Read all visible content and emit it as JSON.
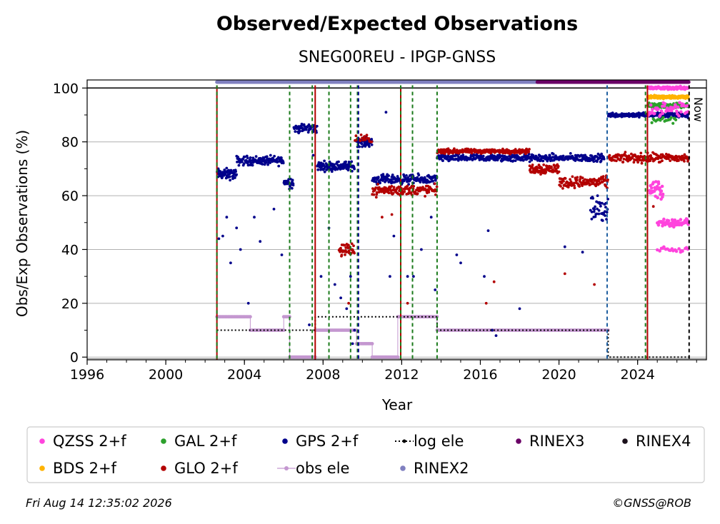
{
  "chart_data": {
    "type": "scatter",
    "title": "Observed/Expected Observations",
    "subtitle": "SNEG00REU - IPGP-GNSS",
    "xlabel": "Year",
    "ylabel": "Obs/Exp Observations (%)",
    "xlim": [
      1996,
      2027.5
    ],
    "ylim": [
      -1,
      103
    ],
    "xticks": [
      "1996",
      "2000",
      "2004",
      "2008",
      "2012",
      "2016",
      "2020",
      "2024"
    ],
    "yticks": [
      "0",
      "20",
      "40",
      "60",
      "80",
      "100"
    ],
    "grid": "horizontal",
    "now_label": "Now",
    "now_year": 2026.62,
    "series": [
      {
        "name": "QZSS 2+f",
        "color": "#ff44dd",
        "segments": [
          {
            "x0": 2024.5,
            "x1": 2026.6,
            "y": 100,
            "noise": 0.8,
            "n": 80
          },
          {
            "x0": 2024.5,
            "x1": 2026.6,
            "y": 92,
            "noise": 4,
            "n": 50
          },
          {
            "x0": 2024.6,
            "x1": 2025.3,
            "y": 62,
            "noise": 6,
            "n": 30
          },
          {
            "x0": 2025.0,
            "x1": 2026.6,
            "y": 50,
            "noise": 2,
            "n": 60
          },
          {
            "x0": 2025.0,
            "x1": 2026.6,
            "y": 40,
            "noise": 1.5,
            "n": 20
          }
        ]
      },
      {
        "name": "BDS 2+f",
        "color": "#ffb300",
        "segments": [
          {
            "x0": 2024.5,
            "x1": 2026.6,
            "y": 96.5,
            "noise": 0.7,
            "n": 80
          },
          {
            "x0": 2024.5,
            "x1": 2026.6,
            "y": 97,
            "noise": 0.5,
            "n": 40
          }
        ]
      },
      {
        "name": "GAL 2+f",
        "color": "#2ca02c",
        "segments": [
          {
            "x0": 2024.5,
            "x1": 2026.6,
            "y": 93.5,
            "noise": 1.2,
            "n": 120
          },
          {
            "x0": 2024.7,
            "x1": 2026.0,
            "y": 88,
            "noise": 2,
            "n": 20
          }
        ]
      },
      {
        "name": "GPS 2+f",
        "color": "#00008b",
        "segments": [
          {
            "x0": 2002.6,
            "x1": 2003.6,
            "y": 68,
            "noise": 3,
            "n": 60
          },
          {
            "x0": 2003.6,
            "x1": 2006.0,
            "y": 73,
            "noise": 2.5,
            "n": 120
          },
          {
            "x0": 2006.0,
            "x1": 2006.5,
            "y": 65,
            "noise": 3,
            "n": 25
          },
          {
            "x0": 2006.5,
            "x1": 2007.7,
            "y": 85,
            "noise": 2.5,
            "n": 60
          },
          {
            "x0": 2007.7,
            "x1": 2009.6,
            "y": 71,
            "noise": 2.5,
            "n": 110
          },
          {
            "x0": 2009.7,
            "x1": 2010.5,
            "y": 80,
            "noise": 2.5,
            "n": 50
          },
          {
            "x0": 2010.5,
            "x1": 2013.8,
            "y": 66,
            "noise": 2.5,
            "n": 170
          },
          {
            "x0": 2013.8,
            "x1": 2022.3,
            "y": 74,
            "noise": 2,
            "n": 400
          },
          {
            "x0": 2021.6,
            "x1": 2022.5,
            "y": 55,
            "noise": 7,
            "n": 40
          },
          {
            "x0": 2022.5,
            "x1": 2024.5,
            "y": 90,
            "noise": 1.2,
            "n": 120
          },
          {
            "x0": 2024.5,
            "x1": 2026.6,
            "y": 90,
            "noise": 1.5,
            "n": 110
          }
        ],
        "outliers": [
          [
            2002.7,
            44
          ],
          [
            2002.9,
            45
          ],
          [
            2003.1,
            52
          ],
          [
            2003.3,
            35
          ],
          [
            2003.6,
            48
          ],
          [
            2003.8,
            40
          ],
          [
            2004.2,
            20
          ],
          [
            2004.5,
            52
          ],
          [
            2004.8,
            43
          ],
          [
            2005.5,
            55
          ],
          [
            2005.9,
            38
          ],
          [
            2007.3,
            12
          ],
          [
            2007.5,
            75
          ],
          [
            2007.9,
            30
          ],
          [
            2008.3,
            48
          ],
          [
            2008.6,
            27
          ],
          [
            2008.9,
            22
          ],
          [
            2009.2,
            18
          ],
          [
            2009.4,
            30
          ],
          [
            2009.6,
            10
          ],
          [
            2009.5,
            5
          ],
          [
            2011.2,
            91
          ],
          [
            2011.4,
            30
          ],
          [
            2011.6,
            45
          ],
          [
            2012.3,
            30
          ],
          [
            2012.6,
            30
          ],
          [
            2013.0,
            40
          ],
          [
            2013.5,
            52
          ],
          [
            2013.7,
            25
          ],
          [
            2014.8,
            38
          ],
          [
            2015.0,
            35
          ],
          [
            2016.2,
            30
          ],
          [
            2016.4,
            47
          ],
          [
            2016.6,
            10
          ],
          [
            2016.8,
            8
          ],
          [
            2018.0,
            18
          ],
          [
            2020.3,
            41
          ],
          [
            2021.2,
            39
          ]
        ]
      },
      {
        "name": "GLO 2+f",
        "color": "#b30000",
        "segments": [
          {
            "x0": 2008.8,
            "x1": 2009.6,
            "y": 40,
            "noise": 4,
            "n": 40
          },
          {
            "x0": 2009.6,
            "x1": 2010.5,
            "y": 81,
            "noise": 2,
            "n": 20
          },
          {
            "x0": 2010.5,
            "x1": 2013.8,
            "y": 62,
            "noise": 3,
            "n": 140
          },
          {
            "x0": 2013.8,
            "x1": 2018.5,
            "y": 76.5,
            "noise": 1.2,
            "n": 220
          },
          {
            "x0": 2018.5,
            "x1": 2020.0,
            "y": 70,
            "noise": 3,
            "n": 80
          },
          {
            "x0": 2020.0,
            "x1": 2022.5,
            "y": 65,
            "noise": 3,
            "n": 110
          },
          {
            "x0": 2022.5,
            "x1": 2026.6,
            "y": 74,
            "noise": 2.5,
            "n": 180
          }
        ],
        "outliers": [
          [
            2009.3,
            20
          ],
          [
            2011.0,
            52
          ],
          [
            2011.5,
            53
          ],
          [
            2012.3,
            20
          ],
          [
            2016.3,
            20
          ],
          [
            2016.7,
            28
          ],
          [
            2020.3,
            31
          ],
          [
            2021.8,
            27
          ],
          [
            2024.8,
            56
          ]
        ]
      },
      {
        "name": "log ele",
        "color": "#000000",
        "style": "dotted",
        "steps": [
          [
            2002.6,
            10
          ],
          [
            2007.6,
            10
          ],
          [
            2007.6,
            15
          ],
          [
            2013.8,
            15
          ],
          [
            2013.8,
            10
          ],
          [
            2022.5,
            10
          ],
          [
            2022.5,
            0
          ],
          [
            2026.6,
            0
          ]
        ]
      },
      {
        "name": "obs ele",
        "color": "#c497d0",
        "style": "line",
        "steps": [
          [
            2002.6,
            15
          ],
          [
            2004.3,
            15
          ],
          [
            2004.3,
            10
          ],
          [
            2006.0,
            10
          ],
          [
            2006.0,
            15
          ],
          [
            2006.3,
            15
          ],
          [
            2006.3,
            0
          ],
          [
            2007.6,
            0
          ],
          [
            2007.6,
            10
          ],
          [
            2009.7,
            10
          ],
          [
            2009.7,
            5
          ],
          [
            2010.5,
            5
          ],
          [
            2010.5,
            0
          ],
          [
            2011.8,
            0
          ],
          [
            2011.8,
            15
          ],
          [
            2013.8,
            15
          ],
          [
            2013.8,
            10
          ],
          [
            2022.5,
            10
          ]
        ]
      },
      {
        "name": "RINEX2",
        "color": "#8080c0",
        "band": [
          2002.6,
          2018.9
        ],
        "y": 102.2
      },
      {
        "name": "RINEX3",
        "color": "#6a0066",
        "band": [
          2018.9,
          2026.6
        ],
        "y": 102.2
      },
      {
        "name": "RINEX4",
        "color": "#1a0f1a",
        "band": [],
        "y": 102.2
      }
    ],
    "vlines": [
      {
        "x": 2002.6,
        "color": "#b30000",
        "style": "solid"
      },
      {
        "x": 2002.6,
        "color": "#1a7a1a",
        "style": "dashed"
      },
      {
        "x": 2006.3,
        "color": "#1a7a1a",
        "style": "dashed"
      },
      {
        "x": 2007.45,
        "color": "#1a7a1a",
        "style": "dashed"
      },
      {
        "x": 2007.6,
        "color": "#b30000",
        "style": "solid"
      },
      {
        "x": 2008.3,
        "color": "#1a7a1a",
        "style": "dashed"
      },
      {
        "x": 2009.4,
        "color": "#1a7a1a",
        "style": "dashed"
      },
      {
        "x": 2009.75,
        "color": "#1a7a1a",
        "style": "dashed"
      },
      {
        "x": 2009.8,
        "color": "#00008b",
        "style": "dashed"
      },
      {
        "x": 2011.95,
        "color": "#b30000",
        "style": "solid"
      },
      {
        "x": 2011.95,
        "color": "#1a7a1a",
        "style": "dashed"
      },
      {
        "x": 2012.55,
        "color": "#1a7a1a",
        "style": "dashed"
      },
      {
        "x": 2013.8,
        "color": "#1a7a1a",
        "style": "dashed"
      },
      {
        "x": 2022.45,
        "color": "#1f5fa0",
        "style": "dashed"
      },
      {
        "x": 2024.4,
        "color": "#1a7a1a",
        "style": "dashed"
      },
      {
        "x": 2024.5,
        "color": "#b30000",
        "style": "solid"
      },
      {
        "x": 2026.62,
        "color": "#000000",
        "style": "dashed"
      }
    ],
    "legend": {
      "placement": "bottom",
      "columns": 6,
      "entries": [
        {
          "label": "QZSS 2+f",
          "color": "#ff44dd",
          "marker": "dot"
        },
        {
          "label": "GAL 2+f",
          "color": "#2ca02c",
          "marker": "dot"
        },
        {
          "label": "GPS 2+f",
          "color": "#00008b",
          "marker": "dot"
        },
        {
          "label": "log ele",
          "color": "#000000",
          "marker": "dotted-line"
        },
        {
          "label": "RINEX3",
          "color": "#6a0066",
          "marker": "dot"
        },
        {
          "label": "RINEX4",
          "color": "#1a0f1a",
          "marker": "dot"
        },
        {
          "label": "BDS 2+f",
          "color": "#ffb300",
          "marker": "dot"
        },
        {
          "label": "GLO 2+f",
          "color": "#b30000",
          "marker": "dot"
        },
        {
          "label": "obs ele",
          "color": "#c497d0",
          "marker": "line-dot"
        },
        {
          "label": "RINEX2",
          "color": "#8080c0",
          "marker": "dot"
        }
      ]
    }
  },
  "footer": {
    "timestamp": "Fri Aug 14 12:35:02 2026",
    "credit": "©GNSS@ROB"
  }
}
